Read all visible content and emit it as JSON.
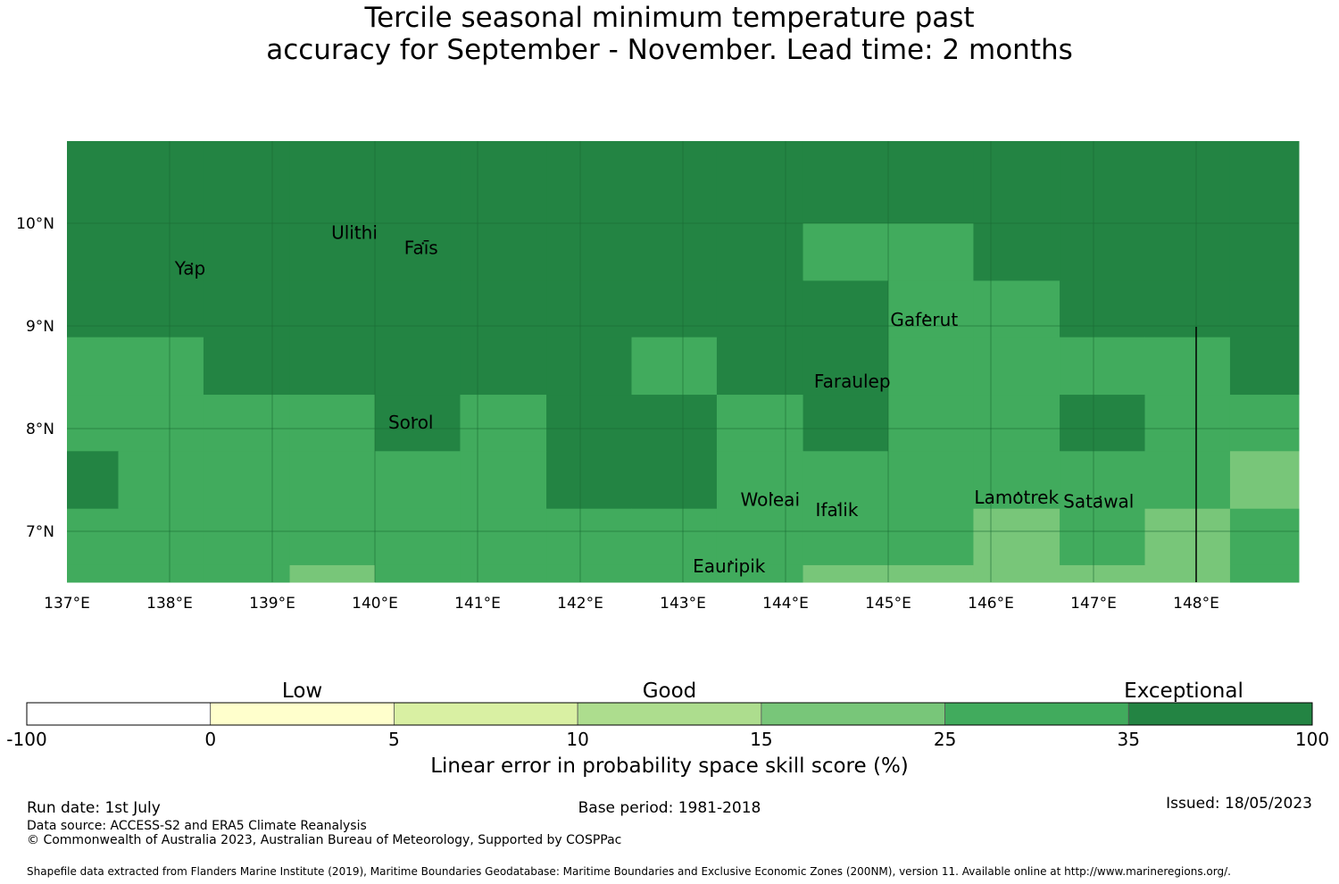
{
  "title": {
    "line1": "Tercile seasonal minimum temperature past",
    "line2": "accuracy for September - November. Lead time: 2 months"
  },
  "map": {
    "lon_range": [
      137.0,
      149.0
    ],
    "lat_range": [
      6.5,
      10.8
    ],
    "lon_ticks": [
      "137°E",
      "138°E",
      "139°E",
      "140°E",
      "141°E",
      "142°E",
      "143°E",
      "144°E",
      "145°E",
      "146°E",
      "147°E",
      "148°E"
    ],
    "lat_ticks": [
      "10°N",
      "9°N",
      "8°N",
      "7°N"
    ],
    "cell_colors": {
      "5": "#78c679",
      "6": "#41ab5d",
      "7": "#238443"
    },
    "grid": {
      "lon_edges": [
        137.0,
        137.5,
        138.33,
        139.17,
        140.0,
        140.83,
        141.67,
        142.5,
        143.33,
        144.17,
        145.0,
        145.83,
        146.67,
        147.5,
        148.33,
        149.0
      ],
      "lat_edges": [
        10.8,
        10.0,
        9.44,
        8.89,
        8.33,
        7.78,
        7.22,
        6.67,
        6.5
      ],
      "rows": [
        [
          7,
          7,
          7,
          7,
          7,
          7,
          7,
          7,
          7,
          7,
          7,
          7,
          7,
          7,
          7
        ],
        [
          7,
          7,
          7,
          7,
          7,
          7,
          7,
          7,
          7,
          6,
          6,
          7,
          7,
          7,
          7
        ],
        [
          7,
          7,
          7,
          7,
          7,
          7,
          7,
          7,
          7,
          7,
          6,
          6,
          7,
          7,
          7
        ],
        [
          6,
          6,
          7,
          7,
          7,
          7,
          7,
          6,
          7,
          7,
          6,
          6,
          6,
          6,
          7
        ],
        [
          6,
          6,
          6,
          6,
          7,
          6,
          7,
          7,
          6,
          7,
          6,
          6,
          7,
          6,
          6
        ],
        [
          7,
          6,
          6,
          6,
          6,
          6,
          7,
          7,
          6,
          6,
          6,
          6,
          6,
          6,
          5
        ],
        [
          6,
          6,
          6,
          6,
          6,
          6,
          6,
          6,
          6,
          6,
          6,
          5,
          6,
          5,
          6
        ],
        [
          6,
          6,
          6,
          5,
          6,
          6,
          6,
          6,
          6,
          5,
          5,
          5,
          5,
          5,
          6
        ]
      ]
    },
    "places": [
      {
        "name": "Ulithi",
        "lon": 139.8,
        "lat": 9.85
      },
      {
        "name": "Faīs",
        "lon": 140.45,
        "lat": 9.7
      },
      {
        "name": "Yap",
        "lon": 138.2,
        "lat": 9.5
      },
      {
        "name": "Gaferut",
        "lon": 145.35,
        "lat": 9.0
      },
      {
        "name": "Faraulep",
        "lon": 144.65,
        "lat": 8.4
      },
      {
        "name": "Sorol",
        "lon": 140.35,
        "lat": 8.0
      },
      {
        "name": "Woleai",
        "lon": 143.85,
        "lat": 7.25
      },
      {
        "name": "Ifalik",
        "lon": 144.5,
        "lat": 7.15
      },
      {
        "name": "Lamotrek",
        "lon": 146.25,
        "lat": 7.27
      },
      {
        "name": "Satawal",
        "lon": 147.05,
        "lat": 7.23
      },
      {
        "name": "Eauripik",
        "lon": 143.45,
        "lat": 6.6
      }
    ]
  },
  "colorbar": {
    "categories": [
      "Low",
      "Good",
      "Exceptional"
    ],
    "tick_labels": [
      "-100",
      "0",
      "5",
      "10",
      "15",
      "25",
      "35",
      "100"
    ],
    "colors": [
      "#ffffff",
      "#ffffcc",
      "#d9f0a3",
      "#addd8e",
      "#78c679",
      "#41ab5d",
      "#238443"
    ],
    "title": "Linear error in probability space skill score (%)"
  },
  "footer": {
    "run_date": "Run date: 1st July",
    "base_period": "Base period: 1981-2018",
    "issued": "Issued: 18/05/2023",
    "data_source": "Data source: ACCESS-S2 and ERA5 Climate Reanalysis",
    "copyright": "© Commonwealth of Australia 2023, Australian Bureau of Meteorology, Supported by COSPPac",
    "shapefile": "Shapefile data extracted from Flanders Marine Institute (2019), Maritime Boundaries Geodatabase: Maritime Boundaries and Exclusive Economic Zones (200NM), version 11. Available online at http://www.marineregions.org/."
  }
}
